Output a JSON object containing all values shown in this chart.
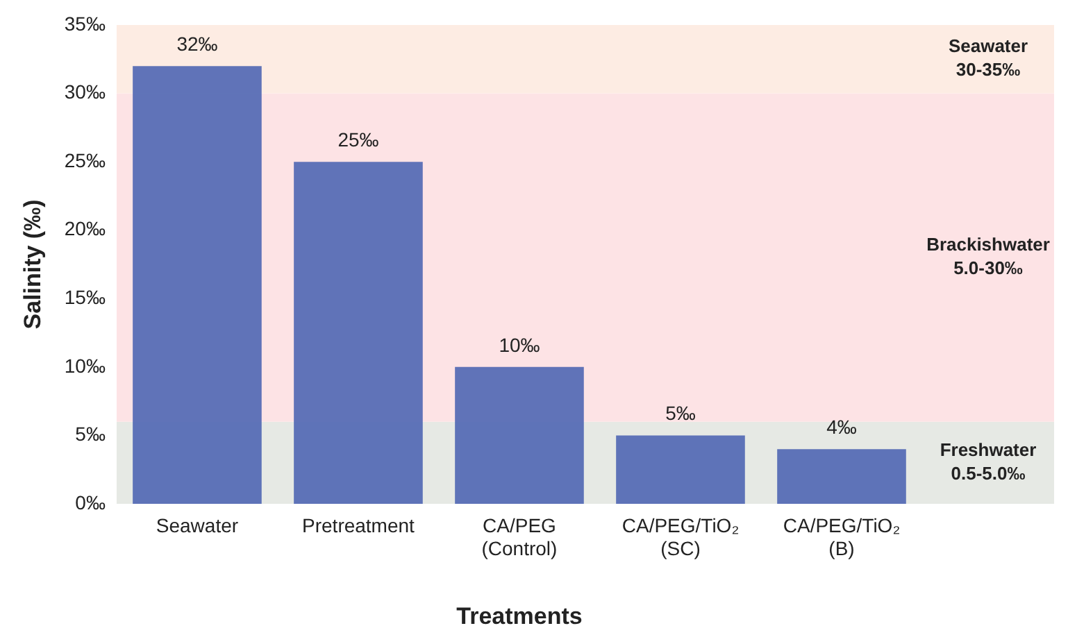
{
  "chart_data": {
    "type": "bar",
    "xlabel": "Treatments",
    "ylabel": "Salinity (‰)",
    "categories": [
      "Seawater",
      "Pretreatment",
      "CA/PEG\n(Control)",
      "CA/PEG/TiO₂\n(SC)",
      "CA/PEG/TiO₂\n(B)"
    ],
    "values": [
      32,
      25,
      10,
      5,
      4
    ],
    "color": "#4f66b3",
    "value_labels": [
      "32‰",
      "25‰",
      "10‰",
      "5‰",
      "4‰"
    ],
    "ylim": [
      0,
      35
    ],
    "yticks": [
      {
        "value": 0,
        "label": "0‰"
      },
      {
        "value": 5,
        "label": "5‰"
      },
      {
        "value": 10,
        "label": "10‰"
      },
      {
        "value": 15,
        "label": "15‰"
      },
      {
        "value": 20,
        "label": "20‰"
      },
      {
        "value": 25,
        "label": "25‰"
      },
      {
        "value": 30,
        "label": "30‰"
      },
      {
        "value": 35,
        "label": "35‰"
      }
    ],
    "bands": [
      {
        "axis": "y",
        "from": 0,
        "to": 6,
        "label": "Freshwater\n0.5-5.0‰",
        "color": "#e6e9e4"
      },
      {
        "axis": "y",
        "from": 6,
        "to": 30,
        "label": "Brackishwater\n5.0-30‰",
        "color": "#fde3e5"
      },
      {
        "axis": "y",
        "from": 30,
        "to": 35,
        "label": "Seawater\n30-35‰",
        "color": "#fdece3"
      }
    ],
    "grid": false,
    "legend": false
  }
}
